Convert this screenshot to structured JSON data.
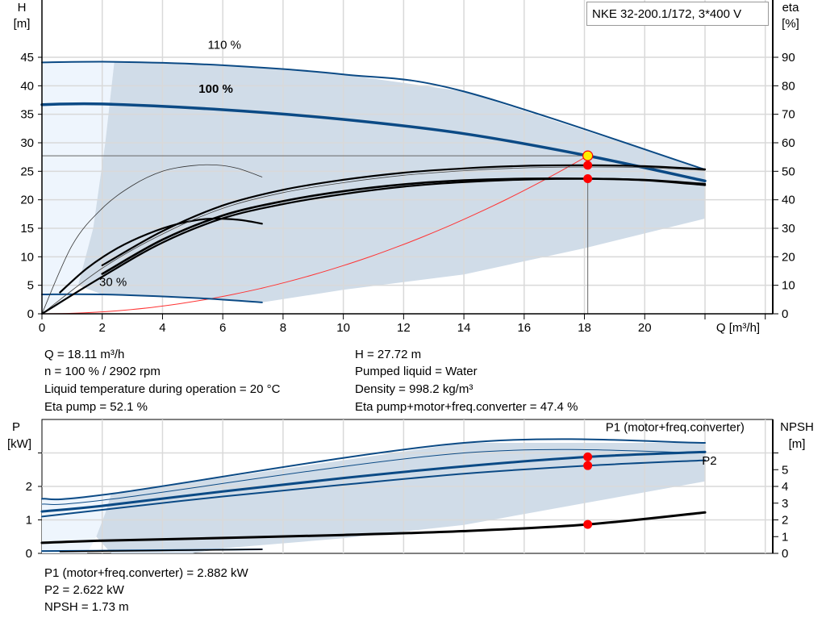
{
  "title": "NKE 32-200.1/172, 3*400 V",
  "colors": {
    "curve_blue": "#0b4a85",
    "band": "#d0dce8",
    "band_light": "#eef5fd",
    "duty_point": "#ff0000",
    "duty_point_main": "#ffee00",
    "system_curve": "#ff3333",
    "grid": "#d9d9d9"
  },
  "info_top": {
    "left": [
      "Q = 18.11 m³/h",
      "n = 100 % / 2902 rpm",
      "Liquid temperature during operation = 20 °C",
      "Eta pump = 52.1 %"
    ],
    "right": [
      "H = 27.72 m",
      "Pumped liquid = Water",
      "Density = 998.2 kg/m³",
      "Eta pump+motor+freq.converter = 47.4 %"
    ]
  },
  "info_bottom": [
    "P1 (motor+freq.converter) = 2.882 kW",
    "P2 = 2.622 kW",
    "NPSH = 1.73 m"
  ],
  "chart_data": [
    {
      "type": "line",
      "xlabel": "Q [m³/h]",
      "ylabel": "H\n[m]",
      "ylabel_lines": [
        "H",
        "[m]"
      ],
      "y2label_lines": [
        "eta",
        "[%]"
      ],
      "xlim": [
        0,
        24
      ],
      "ylim": [
        0,
        50
      ],
      "y2lim": [
        0,
        100
      ],
      "xticks": [
        0,
        2,
        4,
        6,
        8,
        10,
        12,
        14,
        16,
        18,
        20,
        22,
        24
      ],
      "xtick_labels": [
        "0",
        "2",
        "4",
        "6",
        "8",
        "10",
        "12",
        "14",
        "16",
        "18",
        "20",
        "",
        ""
      ],
      "yticks": [
        0,
        5,
        10,
        15,
        20,
        25,
        30,
        35,
        40,
        45
      ],
      "y2ticks": [
        0,
        10,
        20,
        30,
        40,
        50,
        60,
        70,
        80,
        90
      ],
      "grid": true,
      "annotations": [
        {
          "text": "110 %",
          "x": 5.5,
          "y": 46.5
        },
        {
          "text": "100 %",
          "x": 5.2,
          "y": 38.8,
          "bold": true
        },
        {
          "text": "30 %",
          "x": 1.9,
          "y": 4.9
        }
      ],
      "band": {
        "upper": [
          [
            2.4,
            44.2
          ],
          [
            6,
            43.6
          ],
          [
            10,
            42
          ],
          [
            14,
            39
          ],
          [
            22,
            25.3
          ]
        ],
        "lower": [
          [
            22,
            16.7
          ],
          [
            18,
            11.5
          ],
          [
            14,
            6.9
          ],
          [
            10,
            4.2
          ],
          [
            7.3,
            2.0
          ]
        ],
        "left": [
          [
            7.3,
            2.0
          ],
          [
            5,
            2.8
          ],
          [
            2,
            3.4
          ],
          [
            1.2,
            5
          ],
          [
            1.7,
            15
          ],
          [
            2.1,
            30
          ],
          [
            2.4,
            44.2
          ]
        ]
      },
      "band_light": [
        [
          0,
          44.1
        ],
        [
          2.4,
          44.2
        ],
        [
          2.1,
          30
        ],
        [
          1.7,
          15
        ],
        [
          1.2,
          5
        ],
        [
          0.6,
          1.5
        ],
        [
          0,
          0
        ]
      ],
      "series": [
        {
          "name": "110 %",
          "axis": "H",
          "points": [
            [
              0,
              44.1
            ],
            [
              2.5,
              44.2
            ],
            [
              6,
              43.6
            ],
            [
              10,
              42
            ],
            [
              14,
              39
            ],
            [
              22,
              25.3
            ]
          ],
          "color": "#0b4a85",
          "width": 2
        },
        {
          "name": "100 %",
          "axis": "H",
          "points": [
            [
              0,
              36.7
            ],
            [
              2,
              36.8
            ],
            [
              6,
              35.8
            ],
            [
              10,
              34.1
            ],
            [
              14,
              31.6
            ],
            [
              18.11,
              27.72
            ],
            [
              22,
              23.3
            ]
          ],
          "color": "#0b4a85",
          "width": 3.5
        },
        {
          "name": "30 %",
          "axis": "H",
          "points": [
            [
              0,
              3.4
            ],
            [
              2,
              3.4
            ],
            [
              5,
              2.8
            ],
            [
              7.3,
              2.0
            ]
          ],
          "color": "#0b4a85",
          "width": 2
        },
        {
          "axis": "eta",
          "points": [
            [
              0,
              0
            ],
            [
              1,
              24
            ],
            [
              2,
              37
            ],
            [
              3,
              45
            ],
            [
              4,
              50
            ],
            [
              5,
              52
            ],
            [
              5.8,
              52.2
            ],
            [
              6.5,
              51
            ],
            [
              7.3,
              48
            ]
          ],
          "color": "#333333",
          "width": 0.8
        },
        {
          "axis": "eta",
          "points": [
            [
              0.6,
              7.5
            ],
            [
              1.5,
              16
            ],
            [
              2.5,
              23
            ],
            [
              3.5,
              28
            ],
            [
              4.5,
              31.5
            ],
            [
              5.5,
              33.3
            ],
            [
              6.5,
              33
            ],
            [
              7.3,
              31.6
            ]
          ],
          "color": "#000000",
          "width": 2.2
        },
        {
          "axis": "eta",
          "points": [
            [
              0,
              0
            ],
            [
              2,
              16
            ],
            [
              4,
              28
            ],
            [
              6,
              37
            ],
            [
              8,
              42.5
            ],
            [
              10,
              46
            ],
            [
              12,
              48.6
            ],
            [
              14,
              50.2
            ],
            [
              16,
              51.2
            ],
            [
              18.11,
              51.5
            ],
            [
              20,
              51.3
            ],
            [
              22,
              50.3
            ]
          ],
          "color": "#444444",
          "width": 0.8
        },
        {
          "name": "Eta pump",
          "axis": "eta",
          "points": [
            [
              2,
              17
            ],
            [
              4,
              29
            ],
            [
              6,
              38
            ],
            [
              8,
              43.5
            ],
            [
              10,
              47
            ],
            [
              12,
              49.5
            ],
            [
              14,
              51
            ],
            [
              16,
              51.9
            ],
            [
              18.11,
              52.1
            ],
            [
              20,
              51.8
            ],
            [
              22,
              50.7
            ]
          ],
          "color": "#000000",
          "width": 2.2
        },
        {
          "axis": "eta",
          "points": [
            [
              0,
              0
            ],
            [
              2,
              13
            ],
            [
              4,
              25
            ],
            [
              6,
              33.5
            ],
            [
              8,
              38.5
            ],
            [
              10,
              42
            ],
            [
              12,
              44.6
            ],
            [
              14,
              46.2
            ],
            [
              16,
              47.1
            ],
            [
              18.11,
              47.4
            ],
            [
              20,
              47
            ],
            [
              22,
              45.6
            ]
          ],
          "color": "#000000",
          "width": 2.2
        },
        {
          "name": "Eta pump+motor+freq.converter",
          "axis": "eta",
          "points": [
            [
              2,
              14
            ],
            [
              4,
              26
            ],
            [
              6,
              34.5
            ],
            [
              8,
              39.5
            ],
            [
              10,
              43
            ],
            [
              12,
              45.4
            ],
            [
              14,
              46.8
            ],
            [
              16,
              47.4
            ],
            [
              18.11,
              47.4
            ],
            [
              20,
              46.9
            ],
            [
              22,
              45.2
            ]
          ],
          "color": "#000000",
          "width": 2.6
        }
      ],
      "system_curve": {
        "q": 18.11,
        "h": 27.72
      },
      "duty_point": {
        "Q": 18.11,
        "H": 27.72,
        "eta_pump": 52.1,
        "eta_total": 47.4
      }
    },
    {
      "type": "line",
      "ylabel_lines": [
        "P",
        "[kW]"
      ],
      "y2label_lines": [
        "NPSH",
        "[m]"
      ],
      "xlim": [
        0,
        24
      ],
      "ylim": [
        0,
        4
      ],
      "y2lim": [
        0,
        8
      ],
      "yticks": [
        0,
        1,
        2,
        3
      ],
      "ytick_labels": [
        "0",
        "1",
        "2",
        ""
      ],
      "y2ticks": [
        0,
        1,
        2,
        3,
        4,
        5,
        6
      ],
      "y2tick_labels": [
        "0",
        "1",
        "2",
        "3",
        "4",
        "5",
        ""
      ],
      "grid": true,
      "annotations": [
        {
          "text": "P1 (motor+freq.converter)",
          "x": 18.7,
          "y": 3.65,
          "color": "#0b4a85"
        },
        {
          "text": "P2",
          "x": 21.9,
          "y": 2.65,
          "color": "#0b4a85"
        }
      ],
      "band": [
        [
          2.3,
          1.78
        ],
        [
          14,
          3.3
        ],
        [
          22,
          3.3
        ],
        [
          22,
          2.15
        ],
        [
          18,
          1.5
        ],
        [
          14,
          0.85
        ],
        [
          10,
          0.45
        ],
        [
          6,
          0.15
        ],
        [
          5,
          0
        ],
        [
          2.3,
          0
        ],
        [
          1.8,
          0.5
        ],
        [
          2.1,
          1.2
        ]
      ],
      "band_light": [
        [
          0,
          1.63
        ],
        [
          2.3,
          1.78
        ],
        [
          2.1,
          1.2
        ],
        [
          1.8,
          0.5
        ],
        [
          1.5,
          0
        ],
        [
          0,
          0
        ]
      ],
      "series": [
        {
          "axis": "P",
          "points": [
            [
              0,
              1.63
            ],
            [
              2.3,
              1.78
            ],
            [
              14,
              3.3
            ],
            [
              22,
              3.3
            ]
          ],
          "color": "#0b4a85",
          "width": 2
        },
        {
          "axis": "P",
          "points": [
            [
              0,
              1.47
            ],
            [
              2.3,
              1.62
            ],
            [
              14,
              3.0
            ],
            [
              22,
              3.0
            ]
          ],
          "color": "#0b4a85",
          "width": 1
        },
        {
          "name": "P1 (motor+freq.converter)",
          "axis": "P",
          "points": [
            [
              0,
              1.25
            ],
            [
              2,
              1.42
            ],
            [
              6,
              1.85
            ],
            [
              10,
              2.25
            ],
            [
              14,
              2.6
            ],
            [
              18.11,
              2.882
            ],
            [
              22,
              3.03
            ]
          ],
          "color": "#0b4a85",
          "width": 3
        },
        {
          "name": "P2",
          "axis": "P",
          "points": [
            [
              0,
              1.1
            ],
            [
              2,
              1.3
            ],
            [
              6,
              1.7
            ],
            [
              10,
              2.05
            ],
            [
              14,
              2.38
            ],
            [
              18.11,
              2.622
            ],
            [
              22,
              2.78
            ]
          ],
          "color": "#0b4a85",
          "width": 2
        },
        {
          "axis": "P",
          "points": [
            [
              0,
              0.07
            ],
            [
              1.8,
              0.08
            ],
            [
              7.3,
              0.12
            ]
          ],
          "color": "#0b4a85",
          "width": 2
        },
        {
          "axis": "P",
          "points": [
            [
              0.6,
              0.05
            ],
            [
              7.3,
              0.12
            ]
          ],
          "color": "#000000",
          "width": 1.5
        },
        {
          "name": "NPSH",
          "axis": "NPSH",
          "points": [
            [
              0,
              0.63
            ],
            [
              2,
              0.76
            ],
            [
              6,
              0.92
            ],
            [
              10,
              1.1
            ],
            [
              14,
              1.33
            ],
            [
              18.11,
              1.73
            ],
            [
              22,
              2.45
            ]
          ],
          "color": "#000000",
          "width": 3
        }
      ],
      "duty_point": {
        "P1": 2.882,
        "P2": 2.622,
        "NPSH": 1.73,
        "Q": 18.11
      }
    }
  ]
}
